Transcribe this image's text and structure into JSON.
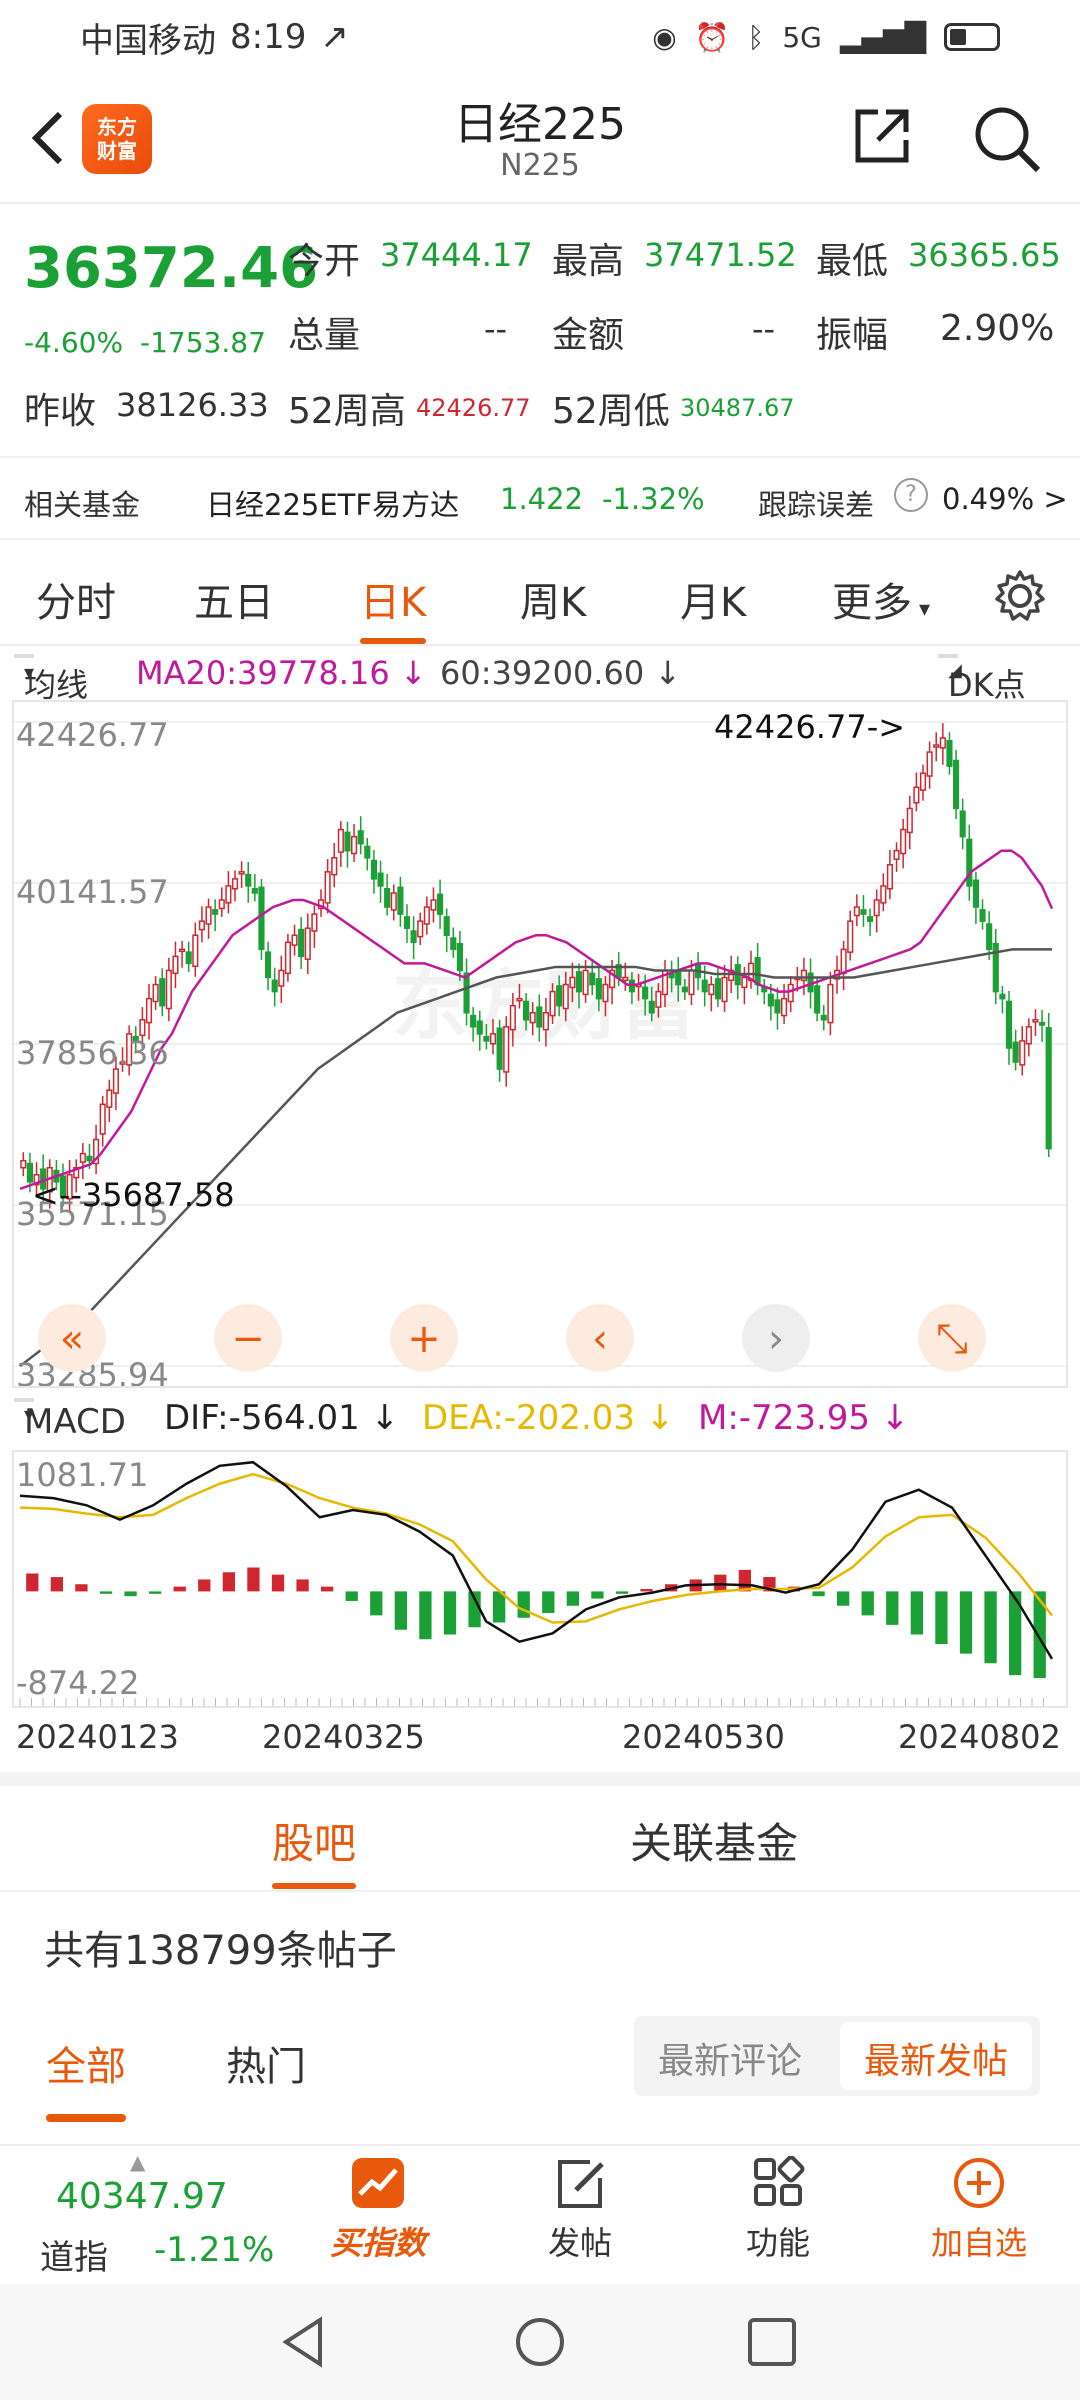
{
  "status": {
    "carrier": "中国移动",
    "time": "8:19",
    "network": "5G"
  },
  "header": {
    "title": "日经225",
    "subtitle": "N225",
    "logo_line1": "东方",
    "logo_line2": "财富"
  },
  "quote": {
    "price": "36372.46",
    "change_pct": "-4.60%",
    "change_abs": "-1753.87",
    "open_label": "今开",
    "open": "37444.17",
    "high_label": "最高",
    "high": "37471.52",
    "low_label": "最低",
    "low": "36365.65",
    "volume_label": "总量",
    "volume": "--",
    "amount_label": "金额",
    "amount": "--",
    "amplitude_label": "振幅",
    "amplitude": "2.90%",
    "prev_close_label": "昨收",
    "prev_close": "38126.33",
    "w52_high_label": "52周高",
    "w52_high": "42426.77",
    "w52_low_label": "52周低",
    "w52_low": "30487.67"
  },
  "fund": {
    "label": "相关基金",
    "name": "日经225ETF易方达",
    "price": "1.422",
    "change": "-1.32%",
    "tracking_label": "跟踪误差",
    "tracking_value": "0.49% >"
  },
  "chart_tabs": [
    "分时",
    "五日",
    "日K",
    "周K",
    "月K",
    "更多"
  ],
  "ma_bar": {
    "selector": "均线",
    "ma20": "MA20:39778.16 ↓",
    "ma60": "60:39200.60 ↓",
    "dk": "DK点"
  },
  "macd_bar": {
    "selector": "MACD",
    "dif": "DIF:-564.01 ↓",
    "dea": "DEA:-202.03 ↓",
    "m": "M:-723.95 ↓"
  },
  "colors": {
    "up": "#d0262f",
    "down": "#1aa034",
    "ma20": "#c2189a",
    "ma60": "#555555",
    "dea": "#e6b800",
    "accent": "#e8590c"
  },
  "chart_data": [
    {
      "type": "candlestick",
      "ylim": [
        33285.94,
        42426.77
      ],
      "ytick_labels": [
        "42426.77",
        "40141.57",
        "37856.36",
        "35571.15",
        "33285.94"
      ],
      "annotations": [
        "42426.77->",
        "<--35687.58"
      ],
      "watermark": "东方财富",
      "closes": [
        36200,
        35900,
        36000,
        35800,
        36100,
        35900,
        35700,
        36000,
        36100,
        36300,
        36200,
        36500,
        37000,
        37200,
        37500,
        37600,
        38000,
        37900,
        38200,
        38500,
        38700,
        38400,
        38900,
        39100,
        39200,
        39000,
        39400,
        39600,
        39800,
        39700,
        39900,
        40100,
        40200,
        40300,
        40100,
        40000,
        39200,
        38800,
        38600,
        38900,
        39300,
        39400,
        39100,
        39500,
        39700,
        39900,
        40300,
        40500,
        40900,
        40600,
        40800,
        40700,
        40500,
        40200,
        40100,
        39800,
        40000,
        39700,
        39500,
        39300,
        39600,
        39800,
        39900,
        39700,
        39400,
        39200,
        38900,
        38300,
        38100,
        38000,
        37900,
        38000,
        37500,
        38100,
        38400,
        38500,
        38200,
        38300,
        38100,
        38300,
        38600,
        38400,
        38700,
        38800,
        38600,
        38900,
        38700,
        38500,
        38700,
        38900,
        38800,
        38800,
        38600,
        38700,
        38500,
        38300,
        38600,
        38900,
        38800,
        38700,
        38600,
        38900,
        38800,
        38600,
        38700,
        38500,
        38800,
        38900,
        38700,
        38800,
        39000,
        38700,
        38600,
        38400,
        38300,
        38500,
        38700,
        38800,
        38900,
        38600,
        38300,
        38200,
        38700,
        38900,
        39200,
        39600,
        39800,
        39700,
        39600,
        39900,
        40100,
        40400,
        40600,
        40900,
        41200,
        41500,
        41700,
        42000,
        42100,
        42200,
        41800,
        41200,
        40800,
        40100,
        39800,
        39600,
        39200,
        38600,
        38500,
        37800,
        37600,
        37900,
        38100,
        38200,
        38126,
        36372
      ],
      "ma20": [
        35800,
        35850,
        35900,
        35950,
        36000,
        36050,
        36100,
        36150,
        36300,
        36500,
        36700,
        36900,
        37200,
        37500,
        37800,
        38000,
        38300,
        38600,
        38800,
        39000,
        39200,
        39400,
        39500,
        39600,
        39700,
        39800,
        39850,
        39900,
        39900,
        39850,
        39800,
        39700,
        39600,
        39500,
        39400,
        39300,
        39200,
        39100,
        39000,
        39000,
        39000,
        38950,
        38900,
        38850,
        38800,
        38900,
        39000,
        39100,
        39200,
        39300,
        39350,
        39400,
        39400,
        39350,
        39300,
        39200,
        39100,
        39000,
        38900,
        38800,
        38700,
        38700,
        38750,
        38800,
        38850,
        38900,
        38950,
        39000,
        39000,
        38950,
        38900,
        38850,
        38800,
        38700,
        38650,
        38600,
        38600,
        38650,
        38700,
        38750,
        38800,
        38850,
        38900,
        38950,
        39000,
        39050,
        39100,
        39150,
        39200,
        39300,
        39500,
        39700,
        39900,
        40100,
        40300,
        40400,
        40500,
        40600,
        40600,
        40500,
        40300,
        40100,
        39778
      ],
      "ma60": [
        33285,
        33500,
        33700,
        33900,
        34200,
        34500,
        34800,
        35100,
        35400,
        35700,
        36000,
        36300,
        36600,
        36900,
        37200,
        37500,
        37700,
        37900,
        38100,
        38300,
        38400,
        38500,
        38600,
        38700,
        38800,
        38850,
        38900,
        38950,
        38950,
        38950,
        38950,
        38950,
        38900,
        38900,
        38900,
        38850,
        38850,
        38850,
        38800,
        38800,
        38800,
        38800,
        38800,
        38850,
        38900,
        38950,
        39000,
        39050,
        39100,
        39150,
        39200,
        39200,
        39200
      ]
    },
    {
      "type": "macd",
      "ylim": [
        -874.22,
        1081.71
      ],
      "ytick_labels": [
        "1081.71",
        "-874.22"
      ],
      "x_labels": [
        "20240123",
        "20240325",
        "20240530",
        "20240802"
      ],
      "dif": [
        800,
        780,
        720,
        600,
        720,
        900,
        1050,
        1080,
        880,
        620,
        680,
        640,
        500,
        300,
        -250,
        -420,
        -350,
        -150,
        -50,
        -10,
        50,
        60,
        50,
        -10,
        60,
        350,
        750,
        850,
        700,
        300,
        -100,
        -564
      ],
      "dea": [
        700,
        690,
        650,
        620,
        640,
        780,
        900,
        980,
        900,
        780,
        700,
        650,
        560,
        420,
        100,
        -140,
        -260,
        -250,
        -150,
        -80,
        -30,
        0,
        20,
        20,
        30,
        200,
        460,
        620,
        640,
        450,
        150,
        -202
      ],
      "hist": [
        150,
        120,
        60,
        -20,
        -40,
        -20,
        40,
        100,
        160,
        200,
        140,
        100,
        40,
        -80,
        -200,
        -320,
        -400,
        -360,
        -300,
        -260,
        -220,
        -180,
        -120,
        -60,
        -20,
        20,
        60,
        100,
        140,
        180,
        120,
        40,
        -40,
        -120,
        -200,
        -280,
        -360,
        -440,
        -520,
        -600,
        -700,
        -724
      ]
    }
  ],
  "section_tabs": {
    "guba": "股吧",
    "funds": "关联基金"
  },
  "posts": {
    "count_text": "共有138799条帖子",
    "tab_all": "全部",
    "tab_hot": "热门",
    "sort_comment": "最新评论",
    "sort_post": "最新发帖"
  },
  "bottom": {
    "ticker_value": "40347.97",
    "ticker_name": "道指",
    "ticker_change": "-1.21%",
    "buy_index": "买指数",
    "post": "发帖",
    "functions": "功能",
    "add_watch": "加自选"
  }
}
